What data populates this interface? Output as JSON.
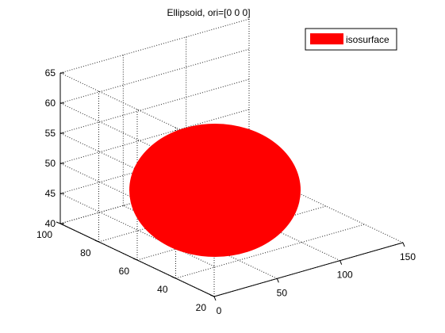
{
  "chart_data": {
    "type": "surface",
    "title": "Ellipsoid, ori=[0 0 0]",
    "xlabel": "",
    "ylabel": "",
    "zlabel": "",
    "x_ticks": [
      0,
      50,
      100,
      150
    ],
    "y_ticks": [
      20,
      40,
      60,
      80,
      100
    ],
    "z_ticks": [
      40,
      45,
      50,
      55,
      60,
      65
    ],
    "xlim": [
      0,
      150
    ],
    "ylim": [
      20,
      100
    ],
    "zlim": [
      40,
      65
    ],
    "grid": true,
    "legend_position": "top-right",
    "series": [
      {
        "name": "isosurface",
        "color": "#ff0000",
        "shape": "ellipsoid",
        "orientation": [
          0,
          0,
          0
        ]
      }
    ]
  }
}
